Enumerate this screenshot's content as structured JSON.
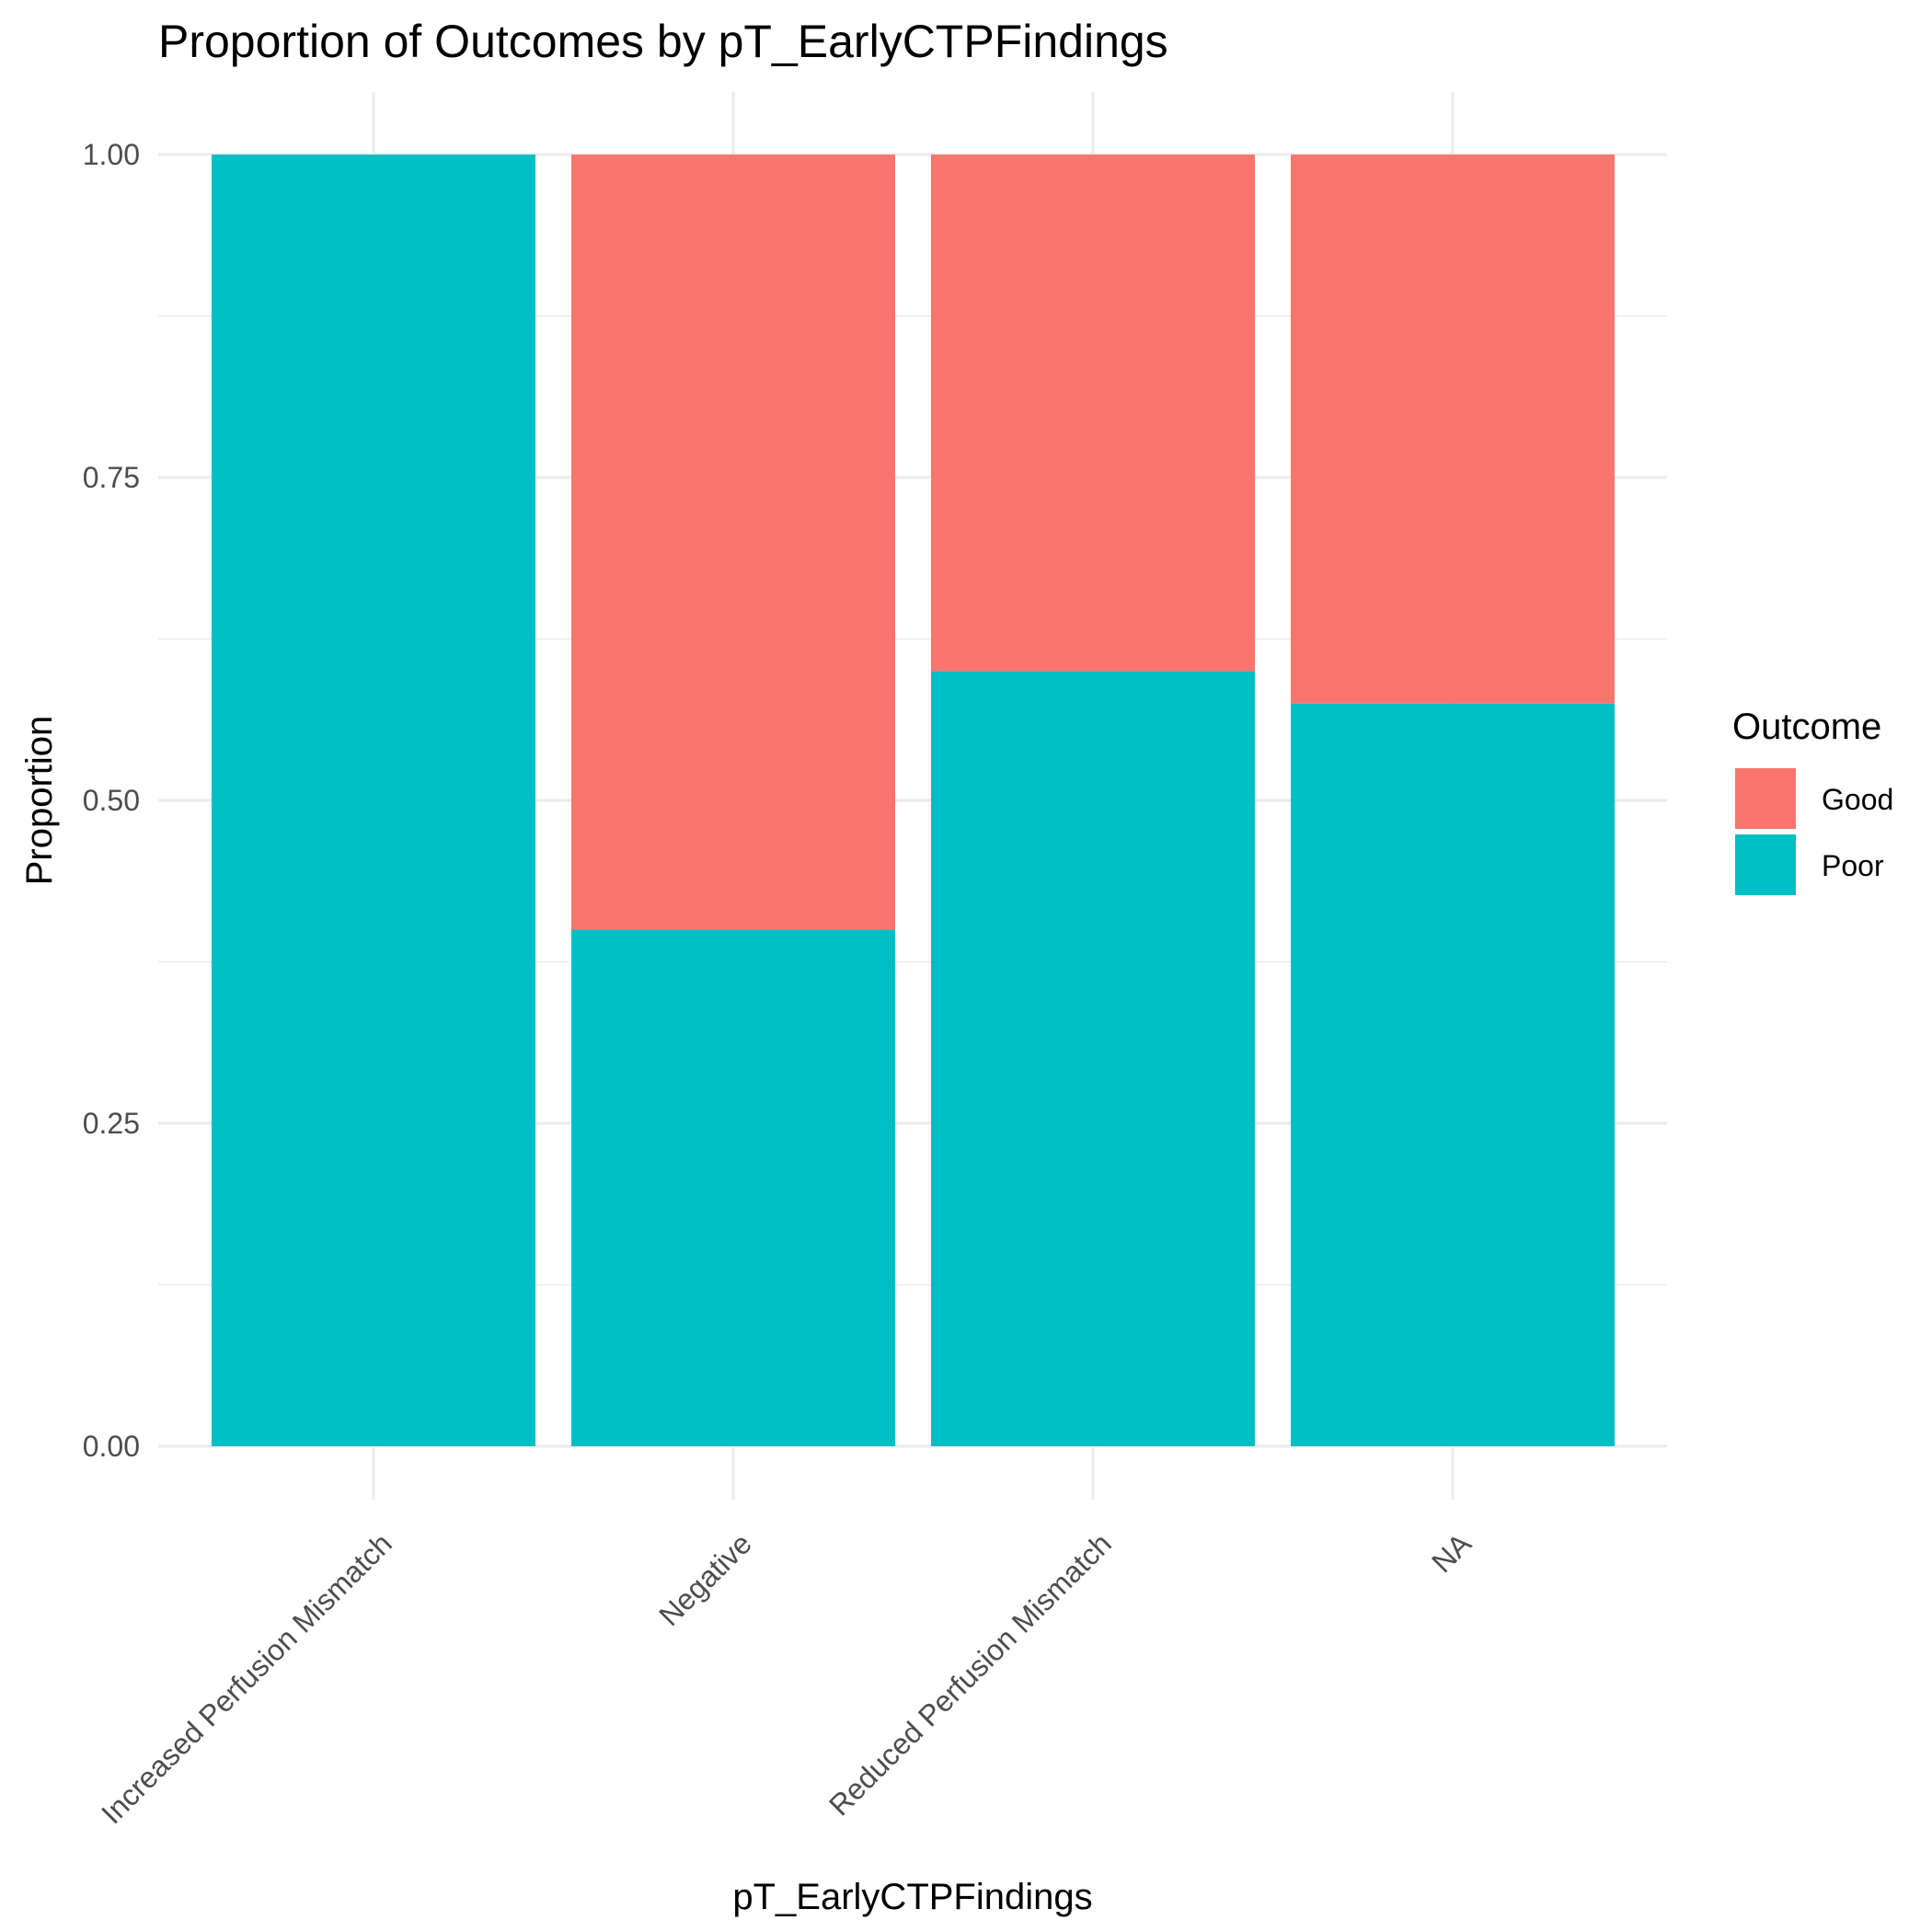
{
  "chart_data": {
    "type": "bar",
    "stacked": true,
    "title": "Proportion of Outcomes by pT_EarlyCTPFindings",
    "xlabel": "pT_EarlyCTPFindings",
    "ylabel": "Proportion",
    "ylim": [
      0,
      1
    ],
    "yticks": [
      "0.00",
      "0.25",
      "0.50",
      "0.75",
      "1.00"
    ],
    "ytick_values": [
      0,
      0.25,
      0.5,
      0.75,
      1
    ],
    "categories": [
      "Increased Perfusion Mismatch",
      "Negative",
      "Reduced Perfusion Mismatch",
      "NA"
    ],
    "series": [
      {
        "name": "Poor",
        "color": "#00BFC4",
        "values": [
          1.0,
          0.4,
          0.6,
          0.575
        ]
      },
      {
        "name": "Good",
        "color": "#F8766D",
        "values": [
          0.0,
          0.6,
          0.4,
          0.425
        ]
      }
    ],
    "legend": {
      "title": "Outcome",
      "position": "right",
      "items": [
        {
          "label": "Good",
          "color": "#F8766D"
        },
        {
          "label": "Poor",
          "color": "#00BFC4"
        }
      ]
    },
    "grid": true
  }
}
